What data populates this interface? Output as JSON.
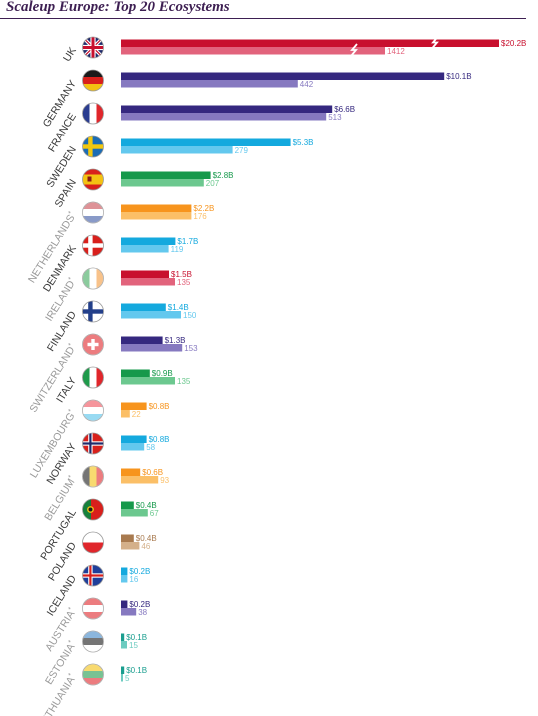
{
  "chart_data": {
    "type": "bar",
    "title": "Scaleup Europe: Top 20 Ecosystems",
    "xlabel": "",
    "ylabel": "",
    "series": [
      {
        "name": "",
        "role": "capital_raised_billion_usd"
      },
      {
        "name": "",
        "role": "scaleup_count"
      }
    ],
    "rows": [
      {
        "country": "UK",
        "star": false,
        "dim": false,
        "capital": 20.2,
        "capital_label": "$20.2B",
        "count": 1412,
        "count_label": "1412",
        "color": "#c8102e",
        "light": "#e2637c",
        "flag": "uk",
        "broken": true
      },
      {
        "country": "GERMANY",
        "star": false,
        "dim": false,
        "capital": 10.1,
        "capital_label": "$10.1B",
        "count": 442,
        "count_label": "442",
        "color": "#35287f",
        "light": "#8679c0",
        "flag": "germany"
      },
      {
        "country": "FRANCE",
        "star": false,
        "dim": false,
        "capital": 6.6,
        "capital_label": "$6.6B",
        "count": 513,
        "count_label": "513",
        "color": "#35287f",
        "light": "#8679c0",
        "flag": "france"
      },
      {
        "country": "SWEDEN",
        "star": false,
        "dim": false,
        "capital": 5.3,
        "capital_label": "$5.3B",
        "count": 279,
        "count_label": "279",
        "color": "#14a9de",
        "light": "#63c8ee",
        "flag": "sweden"
      },
      {
        "country": "SPAIN",
        "star": false,
        "dim": false,
        "capital": 2.8,
        "capital_label": "$2.8B",
        "count": 207,
        "count_label": "207",
        "color": "#16994b",
        "light": "#6cc88f",
        "flag": "spain"
      },
      {
        "country": "NETHERLANDS",
        "star": true,
        "dim": true,
        "capital": 2.2,
        "capital_label": "$2.2B",
        "count": 176,
        "count_label": "176",
        "color": "#f7941d",
        "light": "#fbbf67",
        "flag": "netherlands"
      },
      {
        "country": "DENMARK",
        "star": false,
        "dim": false,
        "capital": 1.7,
        "capital_label": "$1.7B",
        "count": 119,
        "count_label": "119",
        "color": "#14a9de",
        "light": "#63c8ee",
        "flag": "denmark"
      },
      {
        "country": "IRELAND",
        "star": true,
        "dim": true,
        "capital": 1.5,
        "capital_label": "$1.5B",
        "count": 135,
        "count_label": "135",
        "color": "#c8102e",
        "light": "#e2637c",
        "flag": "ireland"
      },
      {
        "country": "FINLAND",
        "star": false,
        "dim": false,
        "capital": 1.4,
        "capital_label": "$1.4B",
        "count": 150,
        "count_label": "150",
        "color": "#14a9de",
        "light": "#63c8ee",
        "flag": "finland"
      },
      {
        "country": "SWITZERLAND",
        "star": true,
        "dim": true,
        "capital": 1.3,
        "capital_label": "$1.3B",
        "count": 153,
        "count_label": "153",
        "color": "#35287f",
        "light": "#8679c0",
        "flag": "switzerland"
      },
      {
        "country": "ITALY",
        "star": false,
        "dim": false,
        "capital": 0.9,
        "capital_label": "$0.9B",
        "count": 135,
        "count_label": "135",
        "color": "#16994b",
        "light": "#6cc88f",
        "flag": "italy"
      },
      {
        "country": "LUXEMBOURG",
        "star": true,
        "dim": true,
        "capital": 0.8,
        "capital_label": "$0.8B",
        "count": 22,
        "count_label": "22",
        "color": "#f7941d",
        "light": "#fbbf67",
        "flag": "luxembourg"
      },
      {
        "country": "NORWAY",
        "star": false,
        "dim": false,
        "capital": 0.8,
        "capital_label": "$0.8B",
        "count": 58,
        "count_label": "58",
        "color": "#14a9de",
        "light": "#63c8ee",
        "flag": "norway"
      },
      {
        "country": "BELGIUM",
        "star": true,
        "dim": true,
        "capital": 0.6,
        "capital_label": "$0.6B",
        "count": 93,
        "count_label": "93",
        "color": "#f7941d",
        "light": "#fbbf67",
        "flag": "belgium"
      },
      {
        "country": "PORTUGAL",
        "star": false,
        "dim": false,
        "capital": 0.4,
        "capital_label": "$0.4B",
        "count": 67,
        "count_label": "67",
        "color": "#16994b",
        "light": "#6cc88f",
        "flag": "portugal"
      },
      {
        "country": "POLAND",
        "star": false,
        "dim": false,
        "capital": 0.4,
        "capital_label": "$0.4B",
        "count": 46,
        "count_label": "46",
        "color": "#a87a4f",
        "light": "#d4b08a",
        "flag": "poland"
      },
      {
        "country": "ICELAND",
        "star": false,
        "dim": false,
        "capital": 0.2,
        "capital_label": "$0.2B",
        "count": 16,
        "count_label": "16",
        "color": "#14a9de",
        "light": "#63c8ee",
        "flag": "iceland"
      },
      {
        "country": "AUSTRIA",
        "star": true,
        "dim": true,
        "capital": 0.2,
        "capital_label": "$0.2B",
        "count": 38,
        "count_label": "38",
        "color": "#35287f",
        "light": "#8679c0",
        "flag": "austria"
      },
      {
        "country": "ESTONIA",
        "star": true,
        "dim": true,
        "capital": 0.1,
        "capital_label": "$0.1B",
        "count": 15,
        "count_label": "15",
        "color": "#1a9e8f",
        "light": "#6dcbc0",
        "flag": "estonia"
      },
      {
        "country": "LITHUANIA",
        "star": true,
        "dim": true,
        "capital": 0.1,
        "capital_label": "$0.1B",
        "count": 5,
        "count_label": "5",
        "color": "#1a9e8f",
        "light": "#6dcbc0",
        "flag": "lithuania"
      }
    ],
    "grid": false,
    "legend": "none"
  },
  "colors": {
    "title": "#3d1f52",
    "label_dark": "#3a3a3a",
    "label_dim": "#9a9a9a"
  }
}
